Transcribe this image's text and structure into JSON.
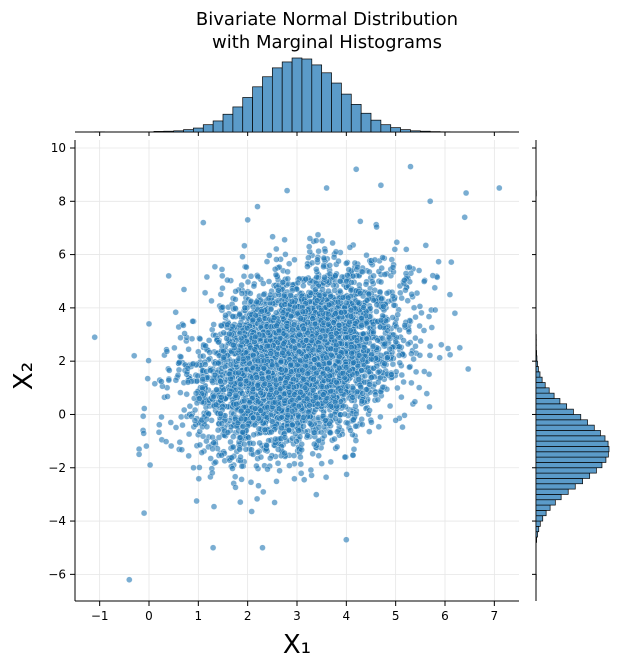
{
  "chart_data": {
    "type": "scatter",
    "title_line1": "Bivariate Normal Distribution",
    "title_line2": "with Marginal Histograms",
    "xlabel": "X₁",
    "ylabel": "X₂",
    "xlim": [
      -1.5,
      7.5
    ],
    "ylim": [
      -7,
      10.3
    ],
    "x_ticks": [
      -1,
      0,
      1,
      2,
      3,
      4,
      5,
      6,
      7
    ],
    "y_ticks": [
      -6,
      -4,
      -2,
      0,
      2,
      4,
      6,
      8,
      10
    ],
    "x_tick_labels": [
      "−1",
      "0",
      "1",
      "2",
      "3",
      "4",
      "5",
      "6",
      "7"
    ],
    "y_tick_labels": [
      "−6",
      "−4",
      "−2",
      "0",
      "2",
      "4",
      "6",
      "8",
      "10"
    ],
    "grid": true,
    "point_color": "#1f77b4",
    "bar_color": "#5b9bc9",
    "distribution": {
      "x_mean": 3.0,
      "y_mean": 2.0,
      "x_std": 1.0,
      "y_std": 1.6,
      "correlation": 0.3,
      "n_points": 5000
    },
    "marginal_x": {
      "bin_start": -1.1,
      "bin_width": 0.2,
      "counts": [
        1,
        0,
        0,
        0,
        0,
        0,
        3,
        4,
        6,
        12,
        20,
        37,
        56,
        90,
        127,
        175,
        229,
        280,
        325,
        355,
        375,
        370,
        340,
        300,
        248,
        192,
        140,
        95,
        60,
        37,
        22,
        12,
        6,
        4,
        2,
        1,
        0,
        0,
        0,
        0,
        0,
        1
      ]
    },
    "marginal_y": {
      "bin_start": -6.2,
      "bin_width": 0.2,
      "counts": [
        1,
        0,
        0,
        0,
        0,
        0,
        0,
        2,
        5,
        9,
        14,
        22,
        33,
        46,
        63,
        82,
        105,
        128,
        152,
        175,
        197,
        215,
        228,
        236,
        238,
        235,
        225,
        210,
        190,
        168,
        146,
        122,
        100,
        78,
        59,
        43,
        30,
        20,
        13,
        8,
        5,
        3,
        2,
        1,
        1,
        1,
        0,
        0,
        0,
        0,
        0,
        0,
        0,
        0,
        0,
        0,
        0,
        0,
        0,
        0,
        0,
        0,
        0,
        0,
        0,
        0,
        0,
        0,
        0,
        0,
        0,
        0,
        1
      ]
    },
    "outliers": [
      [
        -1.1,
        2.9
      ],
      [
        -0.4,
        -6.2
      ],
      [
        -0.3,
        2.2
      ],
      [
        -0.2,
        -1.3
      ],
      [
        -0.2,
        -1.5
      ],
      [
        7.1,
        8.5
      ],
      [
        6.4,
        7.4
      ],
      [
        6.2,
        3.8
      ],
      [
        5.3,
        9.3
      ],
      [
        4.2,
        9.2
      ],
      [
        4.7,
        8.6
      ],
      [
        4.0,
        -4.7
      ],
      [
        2.3,
        -5.0
      ],
      [
        1.3,
        -5.0
      ],
      [
        -0.1,
        -3.7
      ],
      [
        0.4,
        5.2
      ],
      [
        0.0,
        3.4
      ],
      [
        6.1,
        4.5
      ],
      [
        5.7,
        8.0
      ],
      [
        1.1,
        7.2
      ],
      [
        2.0,
        7.3
      ],
      [
        2.2,
        7.8
      ],
      [
        3.6,
        8.5
      ],
      [
        2.8,
        8.4
      ],
      [
        6.3,
        2.5
      ]
    ]
  }
}
